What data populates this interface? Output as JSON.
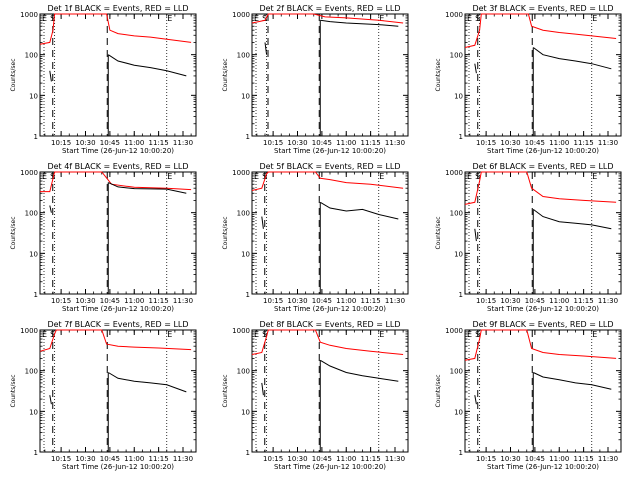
{
  "chart_data": [
    {
      "type": "line",
      "title": "Det 1f BLACK = Events, RED = LLD",
      "xlabel": "Start Time (26-Jun-12 10:00:20)",
      "ylabel": "Counts/sec",
      "yscale": "log",
      "ylim": [
        1,
        1000
      ],
      "yticks": [
        "1",
        "10",
        "100",
        "1000"
      ],
      "xlim": [
        "10:02",
        "11:38"
      ],
      "xticks": [
        "10:15",
        "10:30",
        "10:45",
        "11:00",
        "11:15",
        "11:30"
      ],
      "markers": {
        "S": "10:11",
        "E": "11:20",
        "labels": [
          "S",
          "E"
        ]
      },
      "series": [
        {
          "name": "RED = LLD",
          "color": "#ff0000",
          "points": [
            [
              "10:02",
              180
            ],
            [
              "10:08",
              200
            ],
            [
              "10:10",
              400
            ],
            [
              "10:11",
              1000
            ],
            [
              "10:43",
              1000
            ],
            [
              "10:45",
              400
            ],
            [
              "10:50",
              330
            ],
            [
              "11:00",
              290
            ],
            [
              "11:10",
              270
            ],
            [
              "11:20",
              240
            ],
            [
              "11:35",
              200
            ]
          ]
        },
        {
          "name": "BLACK = Events",
          "color": "#000000",
          "points": [
            [
              "10:08",
              40
            ],
            [
              "10:09",
              22
            ],
            [
              "10:44",
              100
            ],
            [
              "10:50",
              70
            ],
            [
              "11:00",
              55
            ],
            [
              "11:10",
              48
            ],
            [
              "11:20",
              40
            ],
            [
              "11:32",
              30
            ]
          ]
        }
      ]
    },
    {
      "type": "line",
      "title": "Det 2f BLACK = Events, RED = LLD",
      "xlabel": "Start Time (26-Jun-12 10:00:20)",
      "ylabel": "Counts/sec",
      "yscale": "log",
      "ylim": [
        1,
        1000
      ],
      "yticks": [
        "1",
        "10",
        "100",
        "1000"
      ],
      "xlim": [
        "10:02",
        "11:38"
      ],
      "xticks": [
        "10:15",
        "10:30",
        "10:45",
        "11:00",
        "11:15",
        "11:30"
      ],
      "markers": {
        "S": "10:11",
        "E": "11:20",
        "labels": [
          "S",
          "E"
        ]
      },
      "series": [
        {
          "name": "RED = LLD",
          "color": "#ff0000",
          "points": [
            [
              "10:02",
              600
            ],
            [
              "10:10",
              700
            ],
            [
              "10:12",
              1000
            ],
            [
              "10:40",
              1000
            ],
            [
              "10:47",
              850
            ],
            [
              "11:00",
              800
            ],
            [
              "11:20",
              700
            ],
            [
              "11:35",
              600
            ]
          ]
        },
        {
          "name": "BLACK = Events",
          "color": "#000000",
          "points": [
            [
              "10:10",
              200
            ],
            [
              "10:11",
              100
            ],
            [
              "10:44",
              700
            ],
            [
              "10:50",
              650
            ],
            [
              "11:00",
              600
            ],
            [
              "11:20",
              550
            ],
            [
              "11:32",
              500
            ]
          ]
        }
      ]
    },
    {
      "type": "line",
      "title": "Det 3f BLACK = Events, RED = LLD",
      "xlabel": "Start Time (26-Jun-12 10:00:20)",
      "ylabel": "Counts/sec",
      "yscale": "log",
      "ylim": [
        1,
        1000
      ],
      "yticks": [
        "1",
        "10",
        "100",
        "1000"
      ],
      "xlim": [
        "10:02",
        "11:38"
      ],
      "xticks": [
        "10:15",
        "10:30",
        "10:45",
        "11:00",
        "11:15",
        "11:30"
      ],
      "markers": {
        "S": "10:11",
        "E": "11:20",
        "labels": [
          "S",
          "E"
        ]
      },
      "series": [
        {
          "name": "RED = LLD",
          "color": "#ff0000",
          "points": [
            [
              "10:02",
              150
            ],
            [
              "10:08",
              170
            ],
            [
              "10:11",
              400
            ],
            [
              "10:12",
              1000
            ],
            [
              "10:41",
              1000
            ],
            [
              "10:43",
              500
            ],
            [
              "10:50",
              400
            ],
            [
              "11:00",
              350
            ],
            [
              "11:10",
              320
            ],
            [
              "11:20",
              290
            ],
            [
              "11:35",
              250
            ]
          ]
        },
        {
          "name": "BLACK = Events",
          "color": "#000000",
          "points": [
            [
              "10:08",
              60
            ],
            [
              "10:09",
              35
            ],
            [
              "10:44",
              150
            ],
            [
              "10:50",
              100
            ],
            [
              "11:00",
              80
            ],
            [
              "11:10",
              70
            ],
            [
              "11:20",
              60
            ],
            [
              "11:32",
              45
            ]
          ]
        }
      ]
    },
    {
      "type": "line",
      "title": "Det 4f BLACK = Events, RED = LLD",
      "xlabel": "Start Time (26-Jun-12 10:00:20)",
      "ylabel": "Counts/sec",
      "yscale": "log",
      "ylim": [
        1,
        1000
      ],
      "yticks": [
        "1",
        "10",
        "100",
        "1000"
      ],
      "xlim": [
        "10:02",
        "11:38"
      ],
      "xticks": [
        "10:15",
        "10:30",
        "10:45",
        "11:00",
        "11:15",
        "11:30"
      ],
      "markers": {
        "S": "10:11",
        "E": "11:20",
        "labels": [
          "S",
          "E"
        ]
      },
      "series": [
        {
          "name": "RED = LLD",
          "color": "#ff0000",
          "points": [
            [
              "10:02",
              330
            ],
            [
              "10:08",
              330
            ],
            [
              "10:11",
              1000
            ],
            [
              "10:40",
              1000
            ],
            [
              "10:46",
              500
            ],
            [
              "11:00",
              420
            ],
            [
              "11:20",
              400
            ],
            [
              "11:35",
              370
            ]
          ]
        },
        {
          "name": "BLACK = Events",
          "color": "#000000",
          "points": [
            [
              "10:08",
              150
            ],
            [
              "10:09",
              100
            ],
            [
              "10:44",
              550
            ],
            [
              "10:50",
              430
            ],
            [
              "11:00",
              390
            ],
            [
              "11:20",
              380
            ],
            [
              "11:32",
              300
            ]
          ]
        }
      ]
    },
    {
      "type": "line",
      "title": "Det 5f BLACK = Events, RED = LLD",
      "xlabel": "Start Time (26-Jun-12 10:00:20)",
      "ylabel": "Counts/sec",
      "yscale": "log",
      "ylim": [
        1,
        1000
      ],
      "yticks": [
        "1",
        "10",
        "100",
        "1000"
      ],
      "xlim": [
        "10:02",
        "11:38"
      ],
      "xticks": [
        "10:15",
        "10:30",
        "10:45",
        "11:00",
        "11:15",
        "11:30"
      ],
      "markers": {
        "S": "10:11",
        "E": "11:20",
        "labels": [
          "S",
          "E"
        ]
      },
      "series": [
        {
          "name": "RED = LLD",
          "color": "#ff0000",
          "points": [
            [
              "10:02",
              350
            ],
            [
              "10:08",
              400
            ],
            [
              "10:11",
              900
            ],
            [
              "10:12",
              1000
            ],
            [
              "10:41",
              1000
            ],
            [
              "10:44",
              700
            ],
            [
              "10:50",
              650
            ],
            [
              "11:00",
              550
            ],
            [
              "11:15",
              500
            ],
            [
              "11:35",
              400
            ]
          ]
        },
        {
          "name": "BLACK = Events",
          "color": "#000000",
          "points": [
            [
              "10:08",
              80
            ],
            [
              "10:09",
              40
            ],
            [
              "10:44",
              180
            ],
            [
              "10:50",
              130
            ],
            [
              "11:00",
              110
            ],
            [
              "11:10",
              120
            ],
            [
              "11:20",
              90
            ],
            [
              "11:32",
              70
            ]
          ]
        }
      ]
    },
    {
      "type": "line",
      "title": "Det 6f BLACK = Events, RED = LLD",
      "xlabel": "Start Time (26-Jun-12 10:00:20)",
      "ylabel": "Counts/sec",
      "yscale": "log",
      "ylim": [
        1,
        1000
      ],
      "yticks": [
        "1",
        "10",
        "100",
        "1000"
      ],
      "xlim": [
        "10:02",
        "11:38"
      ],
      "xticks": [
        "10:15",
        "10:30",
        "10:45",
        "11:00",
        "11:15",
        "11:30"
      ],
      "markers": {
        "S": "10:11",
        "E": "11:20",
        "labels": [
          "S",
          "E"
        ]
      },
      "series": [
        {
          "name": "RED = LLD",
          "color": "#ff0000",
          "points": [
            [
              "10:02",
              160
            ],
            [
              "10:08",
              180
            ],
            [
              "10:11",
              600
            ],
            [
              "10:12",
              1000
            ],
            [
              "10:40",
              1000
            ],
            [
              "10:43",
              400
            ],
            [
              "10:50",
              250
            ],
            [
              "11:00",
              220
            ],
            [
              "11:15",
              200
            ],
            [
              "11:35",
              180
            ]
          ]
        },
        {
          "name": "BLACK = Events",
          "color": "#000000",
          "points": [
            [
              "10:08",
              40
            ],
            [
              "10:09",
              20
            ],
            [
              "10:44",
              120
            ],
            [
              "10:50",
              80
            ],
            [
              "11:00",
              60
            ],
            [
              "11:10",
              55
            ],
            [
              "11:20",
              50
            ],
            [
              "11:32",
              40
            ]
          ]
        }
      ]
    },
    {
      "type": "line",
      "title": "Det 7f BLACK = Events, RED = LLD",
      "xlabel": "Start Time (26-Jun-12 10:00:20)",
      "ylabel": "Counts/sec",
      "yscale": "log",
      "ylim": [
        1,
        1000
      ],
      "yticks": [
        "1",
        "10",
        "100",
        "1000"
      ],
      "xlim": [
        "10:02",
        "11:38"
      ],
      "xticks": [
        "10:15",
        "10:30",
        "10:45",
        "11:00",
        "11:15",
        "11:30"
      ],
      "markers": {
        "S": "10:11",
        "E": "11:20",
        "labels": [
          "S",
          "E"
        ]
      },
      "series": [
        {
          "name": "RED = LLD",
          "color": "#ff0000",
          "points": [
            [
              "10:02",
              300
            ],
            [
              "10:08",
              350
            ],
            [
              "10:11",
              800
            ],
            [
              "10:12",
              1000
            ],
            [
              "10:40",
              1000
            ],
            [
              "10:43",
              450
            ],
            [
              "10:50",
              400
            ],
            [
              "11:00",
              380
            ],
            [
              "11:15",
              360
            ],
            [
              "11:35",
              330
            ]
          ]
        },
        {
          "name": "BLACK = Events",
          "color": "#000000",
          "points": [
            [
              "10:08",
              25
            ],
            [
              "10:09",
              15
            ],
            [
              "10:44",
              90
            ],
            [
              "10:50",
              65
            ],
            [
              "11:00",
              55
            ],
            [
              "11:10",
              50
            ],
            [
              "11:20",
              45
            ],
            [
              "11:32",
              30
            ]
          ]
        }
      ]
    },
    {
      "type": "line",
      "title": "Det 8f BLACK = Events, RED = LLD",
      "xlabel": "Start Time (26-Jun-12 10:00:20)",
      "ylabel": "Counts/sec",
      "yscale": "log",
      "ylim": [
        1,
        1000
      ],
      "yticks": [
        "1",
        "10",
        "100",
        "1000"
      ],
      "xlim": [
        "10:02",
        "11:38"
      ],
      "xticks": [
        "10:15",
        "10:30",
        "10:45",
        "11:00",
        "11:15",
        "11:30"
      ],
      "markers": {
        "S": "10:11",
        "E": "11:20",
        "labels": [
          "S",
          "E"
        ]
      },
      "series": [
        {
          "name": "RED = LLD",
          "color": "#ff0000",
          "points": [
            [
              "10:02",
              250
            ],
            [
              "10:08",
              280
            ],
            [
              "10:11",
              700
            ],
            [
              "10:12",
              1000
            ],
            [
              "10:41",
              1000
            ],
            [
              "10:44",
              500
            ],
            [
              "10:50",
              420
            ],
            [
              "11:00",
              350
            ],
            [
              "11:15",
              300
            ],
            [
              "11:35",
              250
            ]
          ]
        },
        {
          "name": "BLACK = Events",
          "color": "#000000",
          "points": [
            [
              "10:08",
              50
            ],
            [
              "10:09",
              25
            ],
            [
              "10:44",
              180
            ],
            [
              "10:50",
              130
            ],
            [
              "11:00",
              90
            ],
            [
              "11:10",
              75
            ],
            [
              "11:20",
              65
            ],
            [
              "11:32",
              55
            ]
          ]
        }
      ]
    },
    {
      "type": "line",
      "title": "Det 9f BLACK = Events, RED = LLD",
      "xlabel": "Start Time (26-Jun-12 10:00:20)",
      "ylabel": "Counts/sec",
      "yscale": "log",
      "ylim": [
        1,
        1000
      ],
      "yticks": [
        "1",
        "10",
        "100",
        "1000"
      ],
      "xlim": [
        "10:02",
        "11:38"
      ],
      "xticks": [
        "10:15",
        "10:30",
        "10:45",
        "11:00",
        "11:15",
        "11:30"
      ],
      "markers": {
        "S": "10:11",
        "E": "11:20",
        "labels": [
          "S",
          "E"
        ]
      },
      "series": [
        {
          "name": "RED = LLD",
          "color": "#ff0000",
          "points": [
            [
              "10:02",
              180
            ],
            [
              "10:08",
              200
            ],
            [
              "10:11",
              600
            ],
            [
              "10:12",
              1000
            ],
            [
              "10:40",
              1000
            ],
            [
              "10:43",
              350
            ],
            [
              "10:50",
              280
            ],
            [
              "11:00",
              250
            ],
            [
              "11:15",
              230
            ],
            [
              "11:35",
              200
            ]
          ]
        },
        {
          "name": "BLACK = Events",
          "color": "#000000",
          "points": [
            [
              "10:08",
              25
            ],
            [
              "10:09",
              15
            ],
            [
              "10:44",
              90
            ],
            [
              "10:50",
              70
            ],
            [
              "11:00",
              60
            ],
            [
              "11:10",
              50
            ],
            [
              "11:20",
              45
            ],
            [
              "11:32",
              35
            ]
          ]
        }
      ]
    }
  ]
}
